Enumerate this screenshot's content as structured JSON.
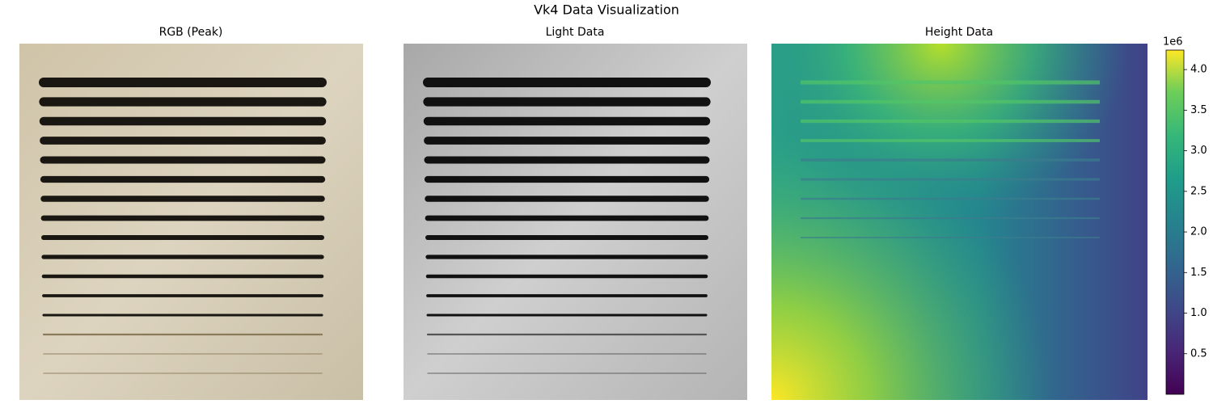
{
  "title": "Vk4 Data Visualization",
  "chart_data": [
    {
      "type": "image",
      "title": "RGB (Peak)"
    },
    {
      "type": "image",
      "title": "Light Data"
    },
    {
      "type": "image",
      "title": "Height Data",
      "colorbar": {
        "colormap": "viridis",
        "ylim": [
          0.0,
          4.24
        ],
        "offset_label": "1e6",
        "yticks": [
          0.5,
          {
            "value": 1.0,
            "label": "1.0"
          },
          1.5,
          {
            "value": 2.0,
            "label": "2.0"
          },
          2.5,
          {
            "value": 3.0,
            "label": "3.0"
          },
          3.5,
          {
            "value": 4.0,
            "label": "4.0"
          }
        ]
      }
    }
  ]
}
